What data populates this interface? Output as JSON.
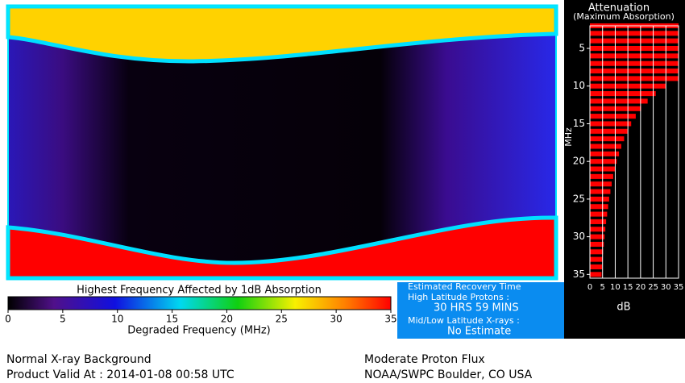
{
  "chart_data": [
    {
      "type": "bar",
      "orientation": "horizontal",
      "title": "Attenuation",
      "subtitle": "(Maximum Absorption)",
      "xlabel": "MHz",
      "ylabel": "dB",
      "color": "#ff0000",
      "grid": true,
      "x": [
        2,
        3,
        4,
        5,
        6,
        7,
        8,
        9,
        10,
        11,
        12,
        13,
        14,
        15,
        16,
        17,
        18,
        19,
        20,
        21,
        22,
        23,
        24,
        25,
        26,
        27,
        28,
        29,
        30,
        31,
        32,
        33,
        34,
        35
      ],
      "values": [
        35,
        35,
        35,
        35,
        35,
        35,
        35,
        35,
        30,
        26,
        22.8,
        20.2,
        18.1,
        16.3,
        14.8,
        13.5,
        12.4,
        11.5,
        10.6,
        9.9,
        9.2,
        8.6,
        8.1,
        7.6,
        7.2,
        6.8,
        6.4,
        6.1,
        5.8,
        5.5,
        5.2,
        5.0,
        4.8,
        4.6
      ],
      "xlim": [
        2,
        35.5
      ],
      "xticks": [
        5,
        10,
        15,
        20,
        25,
        30,
        35
      ],
      "ylim": [
        0,
        35
      ],
      "yticks": [
        0,
        5,
        10,
        15,
        20,
        25,
        30,
        35
      ]
    },
    {
      "type": "colorbar",
      "title": "Highest Frequency Affected by 1dB Absorption",
      "xlabel": "Degraded Frequency (MHz)",
      "xlim": [
        0,
        35
      ],
      "xticks": [
        0,
        5,
        10,
        15,
        20,
        25,
        30,
        35
      ]
    }
  ],
  "recovery": {
    "title": "Estimated Recovery Time",
    "high_label": "High Latitude Protons :",
    "high_value": "30 HRS 59 MINS",
    "low_label": "Mid/Low Latitude X-rays :",
    "low_value": "No Estimate"
  },
  "footer": {
    "xray": "Normal X-ray Background",
    "valid": "Product Valid At : 2014-01-08 00:58 UTC",
    "proton": "Moderate Proton Flux",
    "source": "NOAA/SWPC Boulder, CO USA"
  }
}
